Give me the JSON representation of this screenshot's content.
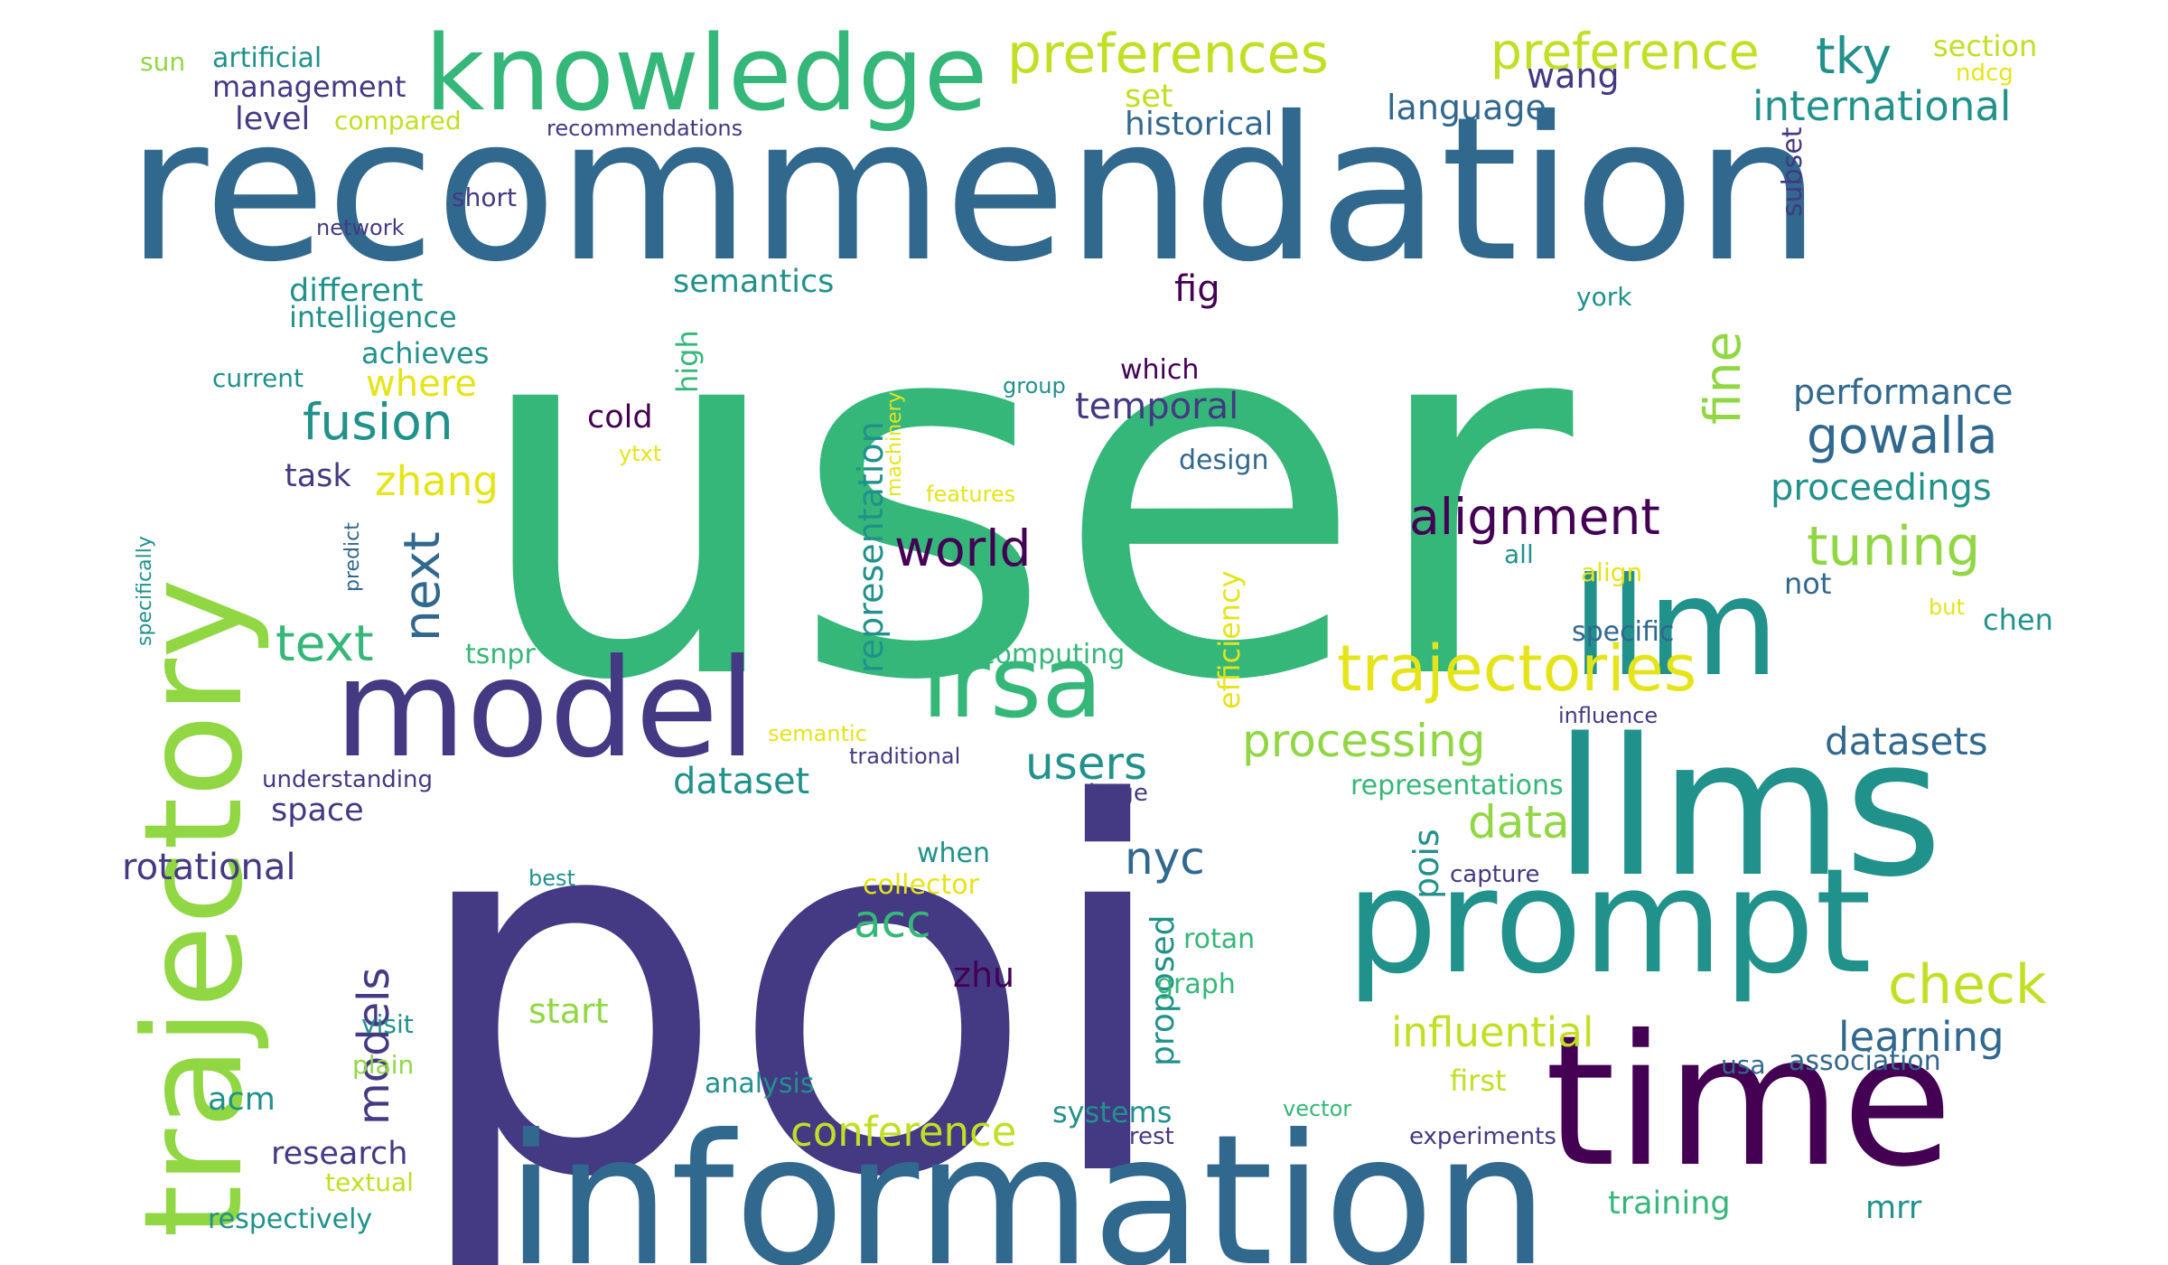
{
  "palette": {
    "deep-purple": "#440154",
    "indigo": "#443983",
    "blue": "#31688e",
    "teal": "#21918c",
    "green": "#35b779",
    "light-green": "#90d743",
    "yellow-green": "#c2df23",
    "yellow": "#e5e419"
  },
  "words": [
    "user",
    "poi",
    "recommendation",
    "information",
    "trajectory",
    "time",
    "llms",
    "prompt",
    "model",
    "llm",
    "knowledge",
    "lrsa",
    "trajectories",
    "preferences",
    "preference",
    "tky",
    "international",
    "alignment",
    "gowalla",
    "tuning",
    "fusion",
    "text",
    "next",
    "world",
    "check",
    "influential",
    "processing",
    "data",
    "nyc",
    "acc",
    "datasets",
    "learning",
    "conference",
    "representation",
    "fine",
    "users",
    "dataset",
    "models",
    "rotational",
    "zhang",
    "where",
    "temporal",
    "performance",
    "proceedings",
    "language",
    "wang",
    "historical",
    "set",
    "section",
    "ndcg",
    "subset",
    "artificial",
    "management",
    "sun",
    "level",
    "compared",
    "recommendations",
    "network",
    "short",
    "different",
    "intelligence",
    "semantics",
    "fig",
    "achieves",
    "current",
    "task",
    "cold",
    "high",
    "machinery",
    "group",
    "which",
    "design",
    "ytxt",
    "features",
    "efficiency",
    "york",
    "predict",
    "specifically",
    "tsnpr",
    "computing",
    "all",
    "not",
    "align",
    "but",
    "chen",
    "specific",
    "influence",
    "semantic",
    "traditional",
    "understanding",
    "large",
    "representations",
    "space",
    "pois",
    "capture",
    "best",
    "when",
    "collector",
    "rotan",
    "ins",
    "proposed",
    "zhu",
    "graph",
    "start",
    "visit",
    "plain",
    "acm",
    "analysis",
    "systems",
    "interest",
    "vector",
    "first",
    "usa",
    "association",
    "experiments",
    "research",
    "textual",
    "respectively",
    "training",
    "mrr"
  ]
}
